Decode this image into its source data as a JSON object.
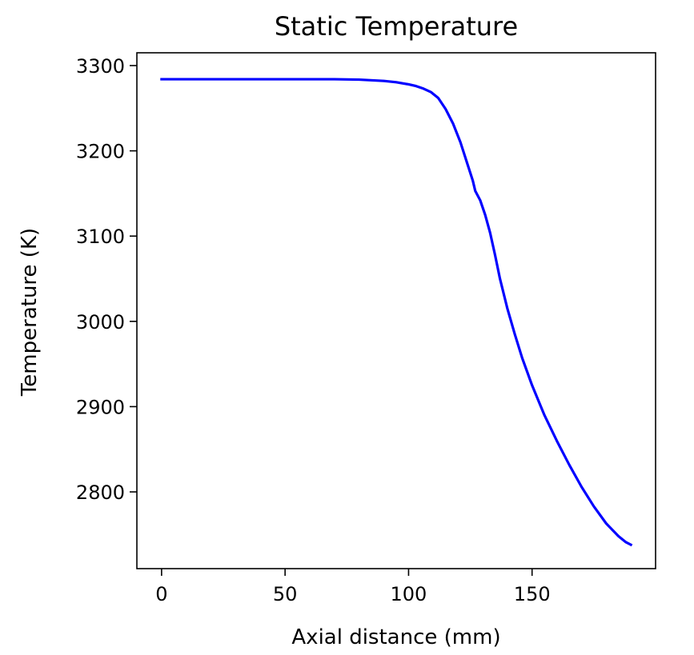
{
  "chart_data": {
    "type": "line",
    "title": "Static Temperature",
    "xlabel": "Axial distance (mm)",
    "ylabel": "Temperature (K)",
    "xlim": [
      -10,
      200
    ],
    "ylim": [
      2710,
      3315
    ],
    "xticks": [
      0,
      50,
      100,
      150
    ],
    "xtick_labels": [
      "0",
      "50",
      "100",
      "150"
    ],
    "yticks": [
      2800,
      2900,
      3000,
      3100,
      3200,
      3300
    ],
    "ytick_labels": [
      "2800",
      "2900",
      "3000",
      "3100",
      "3200",
      "3300"
    ],
    "grid": false,
    "legend": false,
    "series": [
      {
        "color": "#0000ff",
        "x": [
          0,
          10,
          20,
          30,
          40,
          50,
          60,
          70,
          80,
          90,
          95,
          100,
          103,
          106,
          109,
          112,
          115,
          118,
          121,
          124,
          126,
          127,
          129,
          131,
          133,
          135,
          137,
          140,
          143,
          146,
          150,
          155,
          160,
          165,
          170,
          175,
          180,
          185,
          188,
          190
        ],
        "y": [
          3284,
          3284,
          3284,
          3284,
          3284,
          3284,
          3284,
          3284,
          3283.5,
          3282,
          3280.5,
          3278,
          3276,
          3273,
          3269,
          3262,
          3249,
          3232,
          3210,
          3183,
          3165,
          3153,
          3142,
          3125,
          3104,
          3078,
          3050,
          3015,
          2985,
          2957,
          2925,
          2890,
          2860,
          2832,
          2806,
          2783,
          2763,
          2748,
          2741,
          2738
        ]
      }
    ]
  }
}
